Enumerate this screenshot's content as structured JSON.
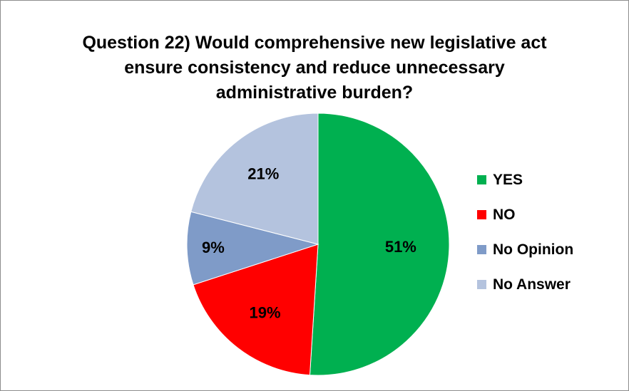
{
  "chart_data": {
    "type": "pie",
    "title_lines": [
      "Question 22) Would comprehensive new legislative act",
      "ensure consistency and reduce unnecessary",
      "administrative burden?"
    ],
    "slices": [
      {
        "name": "YES",
        "value": 51,
        "label": "51%",
        "color": "#00b050"
      },
      {
        "name": "NO",
        "value": 19,
        "label": "19%",
        "color": "#ff0000"
      },
      {
        "name": "No Opinion",
        "value": 9,
        "label": "9%",
        "color": "#7f9bc8"
      },
      {
        "name": "No Answer",
        "value": 21,
        "label": "21%",
        "color": "#b4c3de"
      }
    ],
    "start_angle_deg": 0,
    "direction": "clockwise",
    "legend_position": "right"
  }
}
